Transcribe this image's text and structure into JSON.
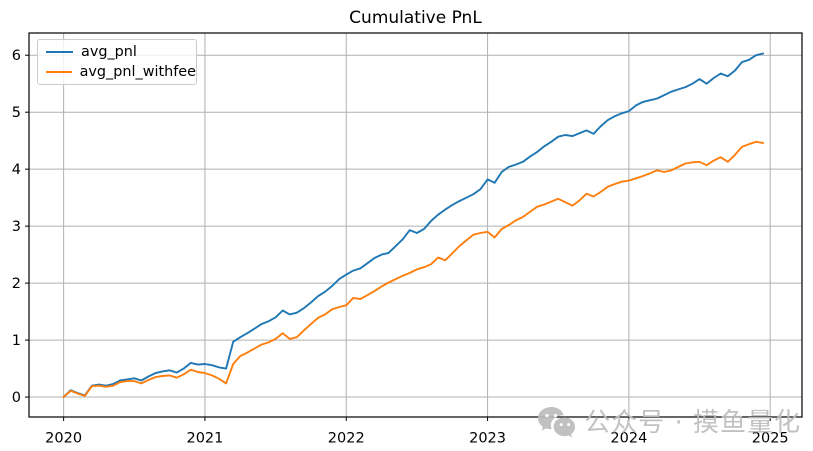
{
  "title": "Cumulative PnL",
  "watermark": {
    "text": "公众号 · 摸鱼量化",
    "icon": "wechat-icon",
    "color": "#bcbcbc"
  },
  "colors": {
    "grid": "#b0b0b0",
    "frame": "#000000",
    "tick_text": "#000000",
    "background": "#ffffff"
  },
  "chart_data": {
    "type": "line",
    "title": "Cumulative PnL",
    "xlabel": "",
    "ylabel": "",
    "grid": true,
    "legend_position": "upper left",
    "xlim": [
      2019.755,
      2025.225
    ],
    "ylim": [
      -0.35,
      6.39
    ],
    "x_ticks": [
      2020,
      2021,
      2022,
      2023,
      2024,
      2025
    ],
    "y_ticks": [
      0,
      1,
      2,
      3,
      4,
      5,
      6
    ],
    "x": [
      2020.0,
      2020.05,
      2020.1,
      2020.15,
      2020.2,
      2020.25,
      2020.3,
      2020.35,
      2020.4,
      2020.45,
      2020.5,
      2020.55,
      2020.6,
      2020.65,
      2020.7,
      2020.75,
      2020.8,
      2020.85,
      2020.9,
      2020.95,
      2021.0,
      2021.05,
      2021.1,
      2021.15,
      2021.2,
      2021.25,
      2021.3,
      2021.35,
      2021.4,
      2021.45,
      2021.5,
      2021.55,
      2021.6,
      2021.65,
      2021.7,
      2021.75,
      2021.8,
      2021.85,
      2021.9,
      2021.95,
      2022.0,
      2022.05,
      2022.1,
      2022.15,
      2022.2,
      2022.25,
      2022.3,
      2022.35,
      2022.4,
      2022.45,
      2022.5,
      2022.55,
      2022.6,
      2022.65,
      2022.7,
      2022.75,
      2022.8,
      2022.85,
      2022.9,
      2022.95,
      2023.0,
      2023.05,
      2023.1,
      2023.15,
      2023.2,
      2023.25,
      2023.3,
      2023.35,
      2023.4,
      2023.45,
      2023.5,
      2023.55,
      2023.6,
      2023.65,
      2023.7,
      2023.75,
      2023.8,
      2023.85,
      2023.9,
      2023.95,
      2024.0,
      2024.05,
      2024.1,
      2024.15,
      2024.2,
      2024.25,
      2024.3,
      2024.35,
      2024.4,
      2024.45,
      2024.5,
      2024.55,
      2024.6,
      2024.65,
      2024.7,
      2024.75,
      2024.8,
      2024.85,
      2024.9,
      2024.95
    ],
    "series": [
      {
        "name": "avg_pnl",
        "color": "#1f77b4",
        "values": [
          0.0,
          0.12,
          0.07,
          0.03,
          0.2,
          0.22,
          0.2,
          0.23,
          0.29,
          0.31,
          0.33,
          0.29,
          0.36,
          0.42,
          0.45,
          0.47,
          0.43,
          0.5,
          0.6,
          0.57,
          0.58,
          0.56,
          0.52,
          0.5,
          0.97,
          1.05,
          1.12,
          1.2,
          1.28,
          1.33,
          1.4,
          1.52,
          1.45,
          1.48,
          1.56,
          1.66,
          1.77,
          1.85,
          1.95,
          2.07,
          2.15,
          2.22,
          2.26,
          2.35,
          2.44,
          2.5,
          2.53,
          2.65,
          2.77,
          2.93,
          2.88,
          2.95,
          3.09,
          3.2,
          3.29,
          3.37,
          3.44,
          3.5,
          3.56,
          3.65,
          3.82,
          3.76,
          3.95,
          4.04,
          4.08,
          4.13,
          4.22,
          4.3,
          4.4,
          4.48,
          4.57,
          4.6,
          4.58,
          4.63,
          4.68,
          4.62,
          4.75,
          4.86,
          4.93,
          4.98,
          5.02,
          5.12,
          5.18,
          5.21,
          5.24,
          5.3,
          5.36,
          5.4,
          5.44,
          5.5,
          5.58,
          5.5,
          5.6,
          5.68,
          5.63,
          5.73,
          5.88,
          5.92,
          6.0,
          6.03
        ]
      },
      {
        "name": "avg_pnl_withfee",
        "color": "#ff7f0e",
        "values": [
          0.0,
          0.11,
          0.06,
          0.02,
          0.19,
          0.2,
          0.18,
          0.2,
          0.26,
          0.28,
          0.28,
          0.24,
          0.3,
          0.35,
          0.37,
          0.38,
          0.34,
          0.4,
          0.48,
          0.44,
          0.42,
          0.38,
          0.32,
          0.24,
          0.58,
          0.72,
          0.78,
          0.85,
          0.92,
          0.96,
          1.02,
          1.12,
          1.02,
          1.05,
          1.17,
          1.28,
          1.39,
          1.45,
          1.54,
          1.58,
          1.61,
          1.74,
          1.72,
          1.79,
          1.86,
          1.94,
          2.01,
          2.07,
          2.13,
          2.18,
          2.24,
          2.28,
          2.33,
          2.45,
          2.4,
          2.52,
          2.65,
          2.75,
          2.85,
          2.88,
          2.9,
          2.8,
          2.95,
          3.02,
          3.1,
          3.16,
          3.25,
          3.34,
          3.38,
          3.43,
          3.48,
          3.42,
          3.36,
          3.45,
          3.57,
          3.52,
          3.6,
          3.69,
          3.74,
          3.78,
          3.8,
          3.84,
          3.88,
          3.93,
          3.98,
          3.95,
          3.98,
          4.04,
          4.1,
          4.12,
          4.13,
          4.07,
          4.15,
          4.21,
          4.13,
          4.25,
          4.39,
          4.44,
          4.48,
          4.46
        ]
      }
    ]
  },
  "legend": {
    "items": [
      {
        "label": "avg_pnl"
      },
      {
        "label": "avg_pnl_withfee"
      }
    ]
  }
}
